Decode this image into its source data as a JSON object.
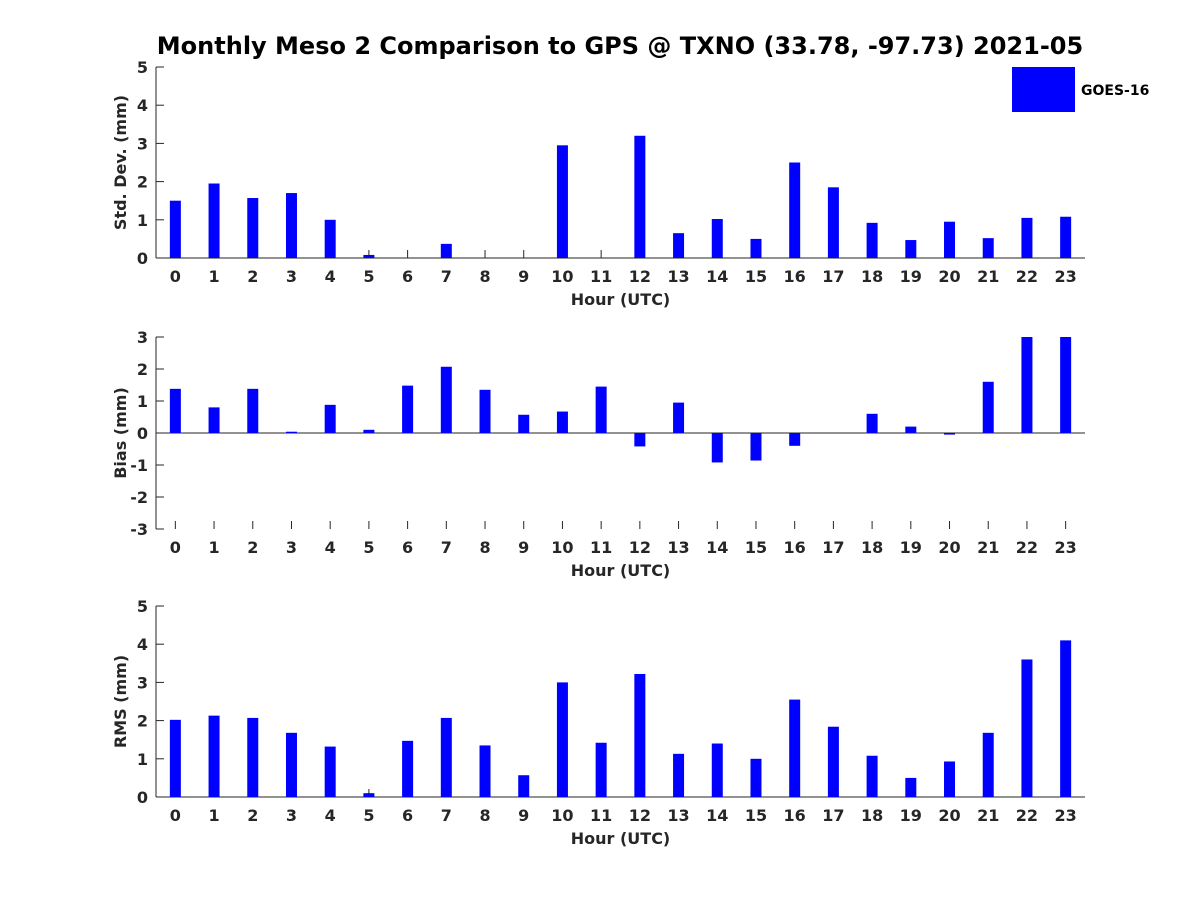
{
  "chart_data": {
    "type": "bar",
    "title": "Monthly Meso 2 Comparison to GPS @ TXNO (33.78, -97.73) 2021-05",
    "legend": {
      "entries": [
        "GOES-16"
      ],
      "placement": "top-right",
      "color": "#0000ff"
    },
    "bar_color": "#0000ff",
    "categories": [
      "0",
      "1",
      "2",
      "3",
      "4",
      "5",
      "6",
      "7",
      "8",
      "9",
      "10",
      "11",
      "12",
      "13",
      "14",
      "15",
      "16",
      "17",
      "18",
      "19",
      "20",
      "21",
      "22",
      "23"
    ],
    "panels": [
      {
        "id": "std",
        "ylabel": "Std. Dev. (mm)",
        "xlabel": "Hour (UTC)",
        "ylim": [
          0,
          5
        ],
        "yticks": [
          0,
          1,
          2,
          3,
          4,
          5
        ],
        "values": [
          1.5,
          1.95,
          1.57,
          1.7,
          1.0,
          0.08,
          0,
          0.37,
          0,
          0,
          2.95,
          0,
          3.2,
          0.65,
          1.02,
          0.5,
          2.5,
          1.85,
          0.92,
          0.47,
          0.95,
          0.52,
          1.05,
          1.08
        ]
      },
      {
        "id": "bias",
        "ylabel": "Bias (mm)",
        "xlabel": "Hour (UTC)",
        "ylim": [
          -3,
          3
        ],
        "yticks": [
          -3,
          -2,
          -1,
          0,
          1,
          2,
          3
        ],
        "values": [
          1.38,
          0.8,
          1.38,
          0.04,
          0.88,
          0.1,
          1.48,
          2.07,
          1.35,
          0.57,
          0.67,
          1.45,
          -0.42,
          0.95,
          -0.92,
          -0.86,
          -0.4,
          0,
          0.6,
          0.2,
          -0.05,
          1.6,
          3.0,
          3.0
        ]
      },
      {
        "id": "rms",
        "ylabel": "RMS (mm)",
        "xlabel": "Hour (UTC)",
        "ylim": [
          0,
          5
        ],
        "yticks": [
          0,
          1,
          2,
          3,
          4,
          5
        ],
        "values": [
          2.02,
          2.13,
          2.07,
          1.68,
          1.32,
          0.1,
          1.47,
          2.07,
          1.35,
          0.57,
          3.0,
          1.42,
          3.22,
          1.13,
          1.4,
          1.0,
          2.55,
          1.84,
          1.08,
          0.5,
          0.93,
          1.68,
          3.6,
          4.1
        ]
      }
    ]
  }
}
